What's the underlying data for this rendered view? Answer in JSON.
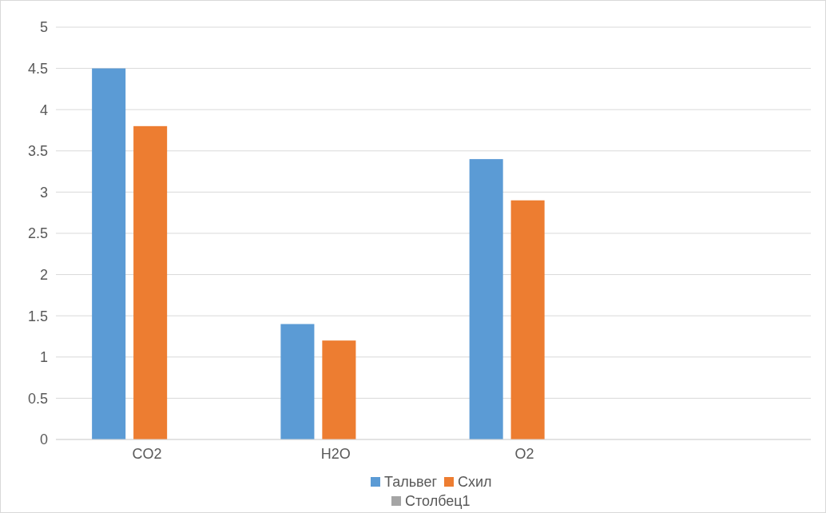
{
  "chart_data": {
    "type": "bar",
    "categories": [
      "CO2",
      "H2O",
      "O2",
      null
    ],
    "series": [
      {
        "name": "Тальвег",
        "color": "#5b9bd5",
        "values": [
          4.5,
          1.4,
          3.4,
          null
        ]
      },
      {
        "name": "Схил",
        "color": "#ed7d31",
        "values": [
          3.8,
          1.2,
          2.9,
          null
        ]
      },
      {
        "name": "Столбец1",
        "color": "#a5a5a5",
        "values": [
          null,
          null,
          null,
          null
        ]
      }
    ],
    "ylim": [
      0,
      5
    ],
    "yticks": [
      0,
      0.5,
      1,
      1.5,
      2,
      2.5,
      3,
      3.5,
      4,
      4.5,
      5
    ],
    "grid": "y",
    "legend": "bottom"
  }
}
